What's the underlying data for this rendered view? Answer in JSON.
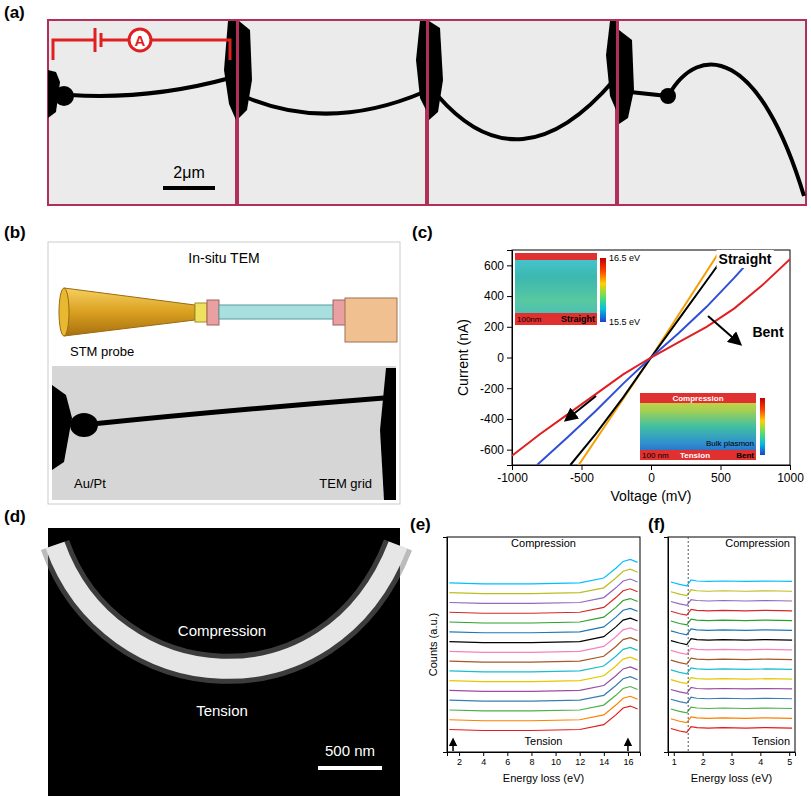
{
  "figure": {
    "a": {
      "panel": "(a)",
      "meter": "A",
      "scale_bar": "2μm"
    },
    "b": {
      "panel": "(b)",
      "title": "In-situ TEM",
      "labels": [
        "STM probe",
        "Au/Pt",
        "TEM grid"
      ]
    },
    "d": {
      "panel": "(d)",
      "labels": [
        "Compression",
        "Tension"
      ],
      "scale_bar": "500 nm"
    }
  },
  "chart_data": [
    {
      "type": "line",
      "panel": "(c)",
      "x_label": "Voltage (mV)",
      "y_label": "Current (nA)",
      "xlim": [
        -1000,
        1000
      ],
      "xticks": [
        -1000,
        -500,
        0,
        500,
        1000
      ],
      "ylim": [
        -700,
        700
      ],
      "yticks": [
        -600,
        -400,
        -200,
        0,
        200,
        400,
        600
      ],
      "series": [
        {
          "color": "#f5a000",
          "x": [
            -520,
            0,
            500
          ],
          "values": [
            -700,
            0,
            700
          ]
        },
        {
          "color": "#000000",
          "x": [
            -580,
            -400,
            -200,
            0,
            200,
            400,
            560
          ],
          "values": [
            -700,
            -500,
            -260,
            0,
            250,
            500,
            700
          ]
        },
        {
          "color": "#2f4fd8",
          "x": [
            -820,
            -600,
            -400,
            -200,
            0,
            200,
            400,
            600,
            780
          ],
          "values": [
            -700,
            -520,
            -350,
            -170,
            0,
            160,
            330,
            520,
            700
          ]
        },
        {
          "color": "#e02020",
          "x": [
            -1000,
            -800,
            -600,
            -400,
            -200,
            0,
            200,
            400,
            600,
            800,
            1000
          ],
          "values": [
            -640,
            -500,
            -370,
            -240,
            -110,
            0,
            100,
            200,
            320,
            470,
            640
          ]
        }
      ],
      "annotations": [
        "Straight",
        "Bent"
      ],
      "insets": [
        {
          "labels": [
            "100nm",
            "Straight"
          ],
          "colorbar": {
            "range": [
              15.5,
              16.5
            ],
            "ticks": [
              {
                "value": 16.5,
                "label": "16.5 eV"
              },
              {
                "value": 15.5,
                "label": "15.5 eV"
              }
            ]
          }
        },
        {
          "labels": [
            "Compression",
            "100 nm",
            "Tension",
            "Bent",
            "Bulk plasmon"
          ]
        }
      ]
    },
    {
      "type": "line",
      "panel": "(e)",
      "x_label": "Energy loss (eV)",
      "y_label": "Counts (a.u.)",
      "xlim": [
        1,
        17
      ],
      "xticks": [
        2,
        4,
        6,
        8,
        10,
        12,
        14,
        16
      ],
      "ylim": [
        -2,
        20
      ],
      "tick_labels": "x",
      "annotations": [
        "Compression",
        "Tension"
      ],
      "arrows_x": [
        1.5,
        16
      ],
      "colors": [
        "#e41a1c",
        "#ff7f00",
        "#4daf4a",
        "#377eb8",
        "#984ea3",
        "#e6c700",
        "#17becf",
        "#a65628",
        "#f781bf",
        "#000000",
        "#1f77b4",
        "#2ca02c",
        "#d62728",
        "#9467bd",
        "#bcbd22",
        "#00bfff"
      ],
      "x": [
        1.2,
        4,
        8,
        12,
        14,
        15,
        15.6,
        16.2,
        16.8
      ],
      "series": [
        {
          "values": [
            0.3,
            0.2,
            0.2,
            0.3,
            0.8,
            1.8,
            2.5,
            2.7,
            2.4
          ]
        },
        {
          "values": [
            1.3,
            1.2,
            1.2,
            1.3,
            1.8,
            2.8,
            3.5,
            3.7,
            3.4
          ]
        },
        {
          "values": [
            2.3,
            2.2,
            2.2,
            2.3,
            2.8,
            3.8,
            4.5,
            4.7,
            4.4
          ]
        },
        {
          "values": [
            3.3,
            3.2,
            3.2,
            3.3,
            3.8,
            4.8,
            5.5,
            5.7,
            5.4
          ]
        },
        {
          "values": [
            4.3,
            4.2,
            4.2,
            4.3,
            4.8,
            5.8,
            6.5,
            6.7,
            6.4
          ]
        },
        {
          "values": [
            5.3,
            5.2,
            5.2,
            5.3,
            5.8,
            6.8,
            7.5,
            7.7,
            7.4
          ]
        },
        {
          "values": [
            6.3,
            6.2,
            6.2,
            6.3,
            6.8,
            7.8,
            8.5,
            8.7,
            8.4
          ]
        },
        {
          "values": [
            7.3,
            7.2,
            7.2,
            7.3,
            7.8,
            8.8,
            9.5,
            9.7,
            9.4
          ]
        },
        {
          "values": [
            8.3,
            8.2,
            8.2,
            8.3,
            8.8,
            9.8,
            10.5,
            10.7,
            10.4
          ]
        },
        {
          "values": [
            9.3,
            9.2,
            9.2,
            9.3,
            9.8,
            10.8,
            11.5,
            11.7,
            11.4
          ]
        },
        {
          "values": [
            10.3,
            10.2,
            10.2,
            10.3,
            10.8,
            11.8,
            12.5,
            12.7,
            12.4
          ]
        },
        {
          "values": [
            11.3,
            11.2,
            11.2,
            11.3,
            11.8,
            12.8,
            13.5,
            13.7,
            13.4
          ]
        },
        {
          "values": [
            12.3,
            12.2,
            12.2,
            12.3,
            12.8,
            13.8,
            14.5,
            14.7,
            14.4
          ]
        },
        {
          "values": [
            13.3,
            13.2,
            13.2,
            13.3,
            13.8,
            14.8,
            15.5,
            15.7,
            15.4
          ]
        },
        {
          "values": [
            14.3,
            14.2,
            14.2,
            14.3,
            14.8,
            15.8,
            16.5,
            16.7,
            16.4
          ]
        },
        {
          "values": [
            15.3,
            15.2,
            15.2,
            15.3,
            15.8,
            16.8,
            17.5,
            17.7,
            17.4
          ]
        }
      ]
    },
    {
      "type": "line",
      "panel": "(f)",
      "x_label": "Energy loss (eV)",
      "xlim": [
        0.8,
        5.2
      ],
      "xticks": [
        1,
        2,
        3,
        4,
        5
      ],
      "ylim": [
        -2,
        20
      ],
      "tick_labels": "x",
      "annotations": [
        "Compression",
        "Tension"
      ],
      "vline_x": 1.5,
      "colors": [
        "#e41a1c",
        "#ff7f00",
        "#4daf4a",
        "#377eb8",
        "#984ea3",
        "#e6c700",
        "#17becf",
        "#a65628",
        "#f781bf",
        "#000000",
        "#1f77b4",
        "#2ca02c",
        "#d62728",
        "#9467bd",
        "#bcbd22",
        "#00bfff"
      ],
      "x": [
        0.9,
        1.2,
        1.45,
        1.6,
        1.8,
        2.2,
        2.7,
        3.5,
        4.2,
        5.1
      ],
      "series": [
        {
          "values": [
            0.4,
            0.15,
            0,
            0.6,
            0.5,
            0.45,
            0.5,
            0.45,
            0.5,
            0.45
          ]
        },
        {
          "values": [
            1.4,
            1.15,
            1,
            1.6,
            1.5,
            1.45,
            1.5,
            1.45,
            1.5,
            1.45
          ]
        },
        {
          "values": [
            2.4,
            2.15,
            2,
            2.6,
            2.5,
            2.45,
            2.5,
            2.45,
            2.5,
            2.45
          ]
        },
        {
          "values": [
            3.4,
            3.15,
            3,
            3.6,
            3.5,
            3.45,
            3.5,
            3.45,
            3.5,
            3.45
          ]
        },
        {
          "values": [
            4.4,
            4.15,
            4,
            4.6,
            4.5,
            4.45,
            4.5,
            4.45,
            4.5,
            4.45
          ]
        },
        {
          "values": [
            5.4,
            5.15,
            5,
            5.6,
            5.5,
            5.45,
            5.5,
            5.45,
            5.5,
            5.45
          ]
        },
        {
          "values": [
            6.4,
            6.15,
            6,
            6.6,
            6.5,
            6.45,
            6.5,
            6.45,
            6.5,
            6.45
          ]
        },
        {
          "values": [
            7.4,
            7.15,
            7,
            7.6,
            7.5,
            7.45,
            7.5,
            7.45,
            7.5,
            7.45
          ]
        },
        {
          "values": [
            8.4,
            8.15,
            8,
            8.6,
            8.5,
            8.45,
            8.5,
            8.45,
            8.5,
            8.45
          ]
        },
        {
          "values": [
            9.4,
            9.15,
            9,
            9.6,
            9.5,
            9.45,
            9.5,
            9.45,
            9.5,
            9.45
          ]
        },
        {
          "values": [
            10.4,
            10.15,
            10,
            10.6,
            10.5,
            10.45,
            10.5,
            10.45,
            10.5,
            10.45
          ]
        },
        {
          "values": [
            11.4,
            11.15,
            11,
            11.6,
            11.5,
            11.45,
            11.5,
            11.45,
            11.5,
            11.45
          ]
        },
        {
          "values": [
            12.4,
            12.15,
            12,
            12.6,
            12.5,
            12.45,
            12.5,
            12.45,
            12.5,
            12.45
          ]
        },
        {
          "values": [
            13.4,
            13.15,
            13,
            13.6,
            13.5,
            13.45,
            13.5,
            13.45,
            13.5,
            13.45
          ]
        },
        {
          "values": [
            14.4,
            14.15,
            14,
            14.6,
            14.5,
            14.45,
            14.5,
            14.45,
            14.5,
            14.45
          ]
        },
        {
          "values": [
            15.4,
            15.15,
            15,
            15.6,
            15.5,
            15.45,
            15.5,
            15.45,
            15.5,
            15.45
          ]
        }
      ]
    }
  ]
}
